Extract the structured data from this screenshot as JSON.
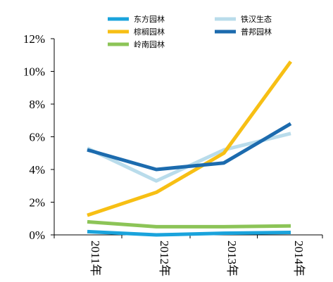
{
  "chart_data": {
    "type": "line",
    "x": [
      "2011年",
      "2012年",
      "2013年",
      "2014年"
    ],
    "ylim": [
      0,
      12
    ],
    "yticks": [
      0,
      2,
      4,
      6,
      8,
      10,
      12
    ],
    "ytick_labels": [
      "0%",
      "2%",
      "4%",
      "6%",
      "8%",
      "10%",
      "12%"
    ],
    "y_unit": "%",
    "grid": false,
    "legend_position": "top",
    "legend_columns": 2,
    "series": [
      {
        "name": "东方园林",
        "color": "#1AA3DC",
        "values": [
          0.2,
          0.0,
          0.1,
          0.15
        ]
      },
      {
        "name": "铁汉生态",
        "color": "#B9DCEB",
        "values": [
          5.3,
          3.3,
          5.2,
          6.2
        ]
      },
      {
        "name": "棕榈园林",
        "color": "#F7BF14",
        "values": [
          1.2,
          2.6,
          5.0,
          10.6
        ]
      },
      {
        "name": "普邦园林",
        "color": "#1C6BAE",
        "values": [
          5.2,
          4.0,
          4.4,
          6.8
        ]
      },
      {
        "name": "岭南园林",
        "color": "#8CC457",
        "values": [
          0.8,
          0.5,
          0.5,
          0.55
        ]
      }
    ]
  }
}
